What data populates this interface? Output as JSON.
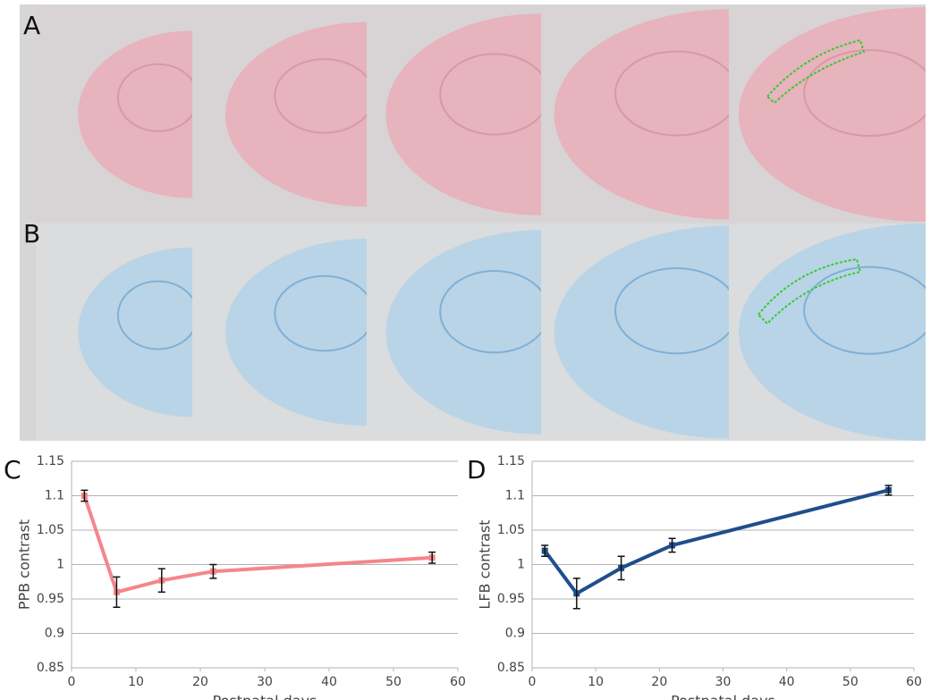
{
  "panel_labels": [
    "A",
    "B",
    "C",
    "D"
  ],
  "chart_data": [
    {
      "type": "line",
      "x_label": "Postnatal days",
      "y_label": "PPB contrast",
      "color": "#f4868a",
      "x": [
        2,
        7,
        14,
        22,
        56
      ],
      "values": [
        1.1,
        0.96,
        0.977,
        0.99,
        1.01
      ],
      "errors": [
        0.008,
        0.022,
        0.017,
        0.01,
        0.008
      ],
      "xlim": [
        0,
        60
      ],
      "xticks": [
        0,
        10,
        20,
        30,
        40,
        50,
        60
      ],
      "ylim": [
        0.85,
        1.15
      ],
      "yticks": [
        0.85,
        0.9,
        0.95,
        1,
        1.05,
        1.1,
        1.15
      ],
      "grid": true
    },
    {
      "type": "line",
      "x_label": "Postnatal days",
      "y_label": "LFB contrast",
      "color": "#1f4e8c",
      "x": [
        2,
        7,
        14,
        22,
        56
      ],
      "values": [
        1.02,
        0.958,
        0.995,
        1.028,
        1.108
      ],
      "errors": [
        0.008,
        0.022,
        0.017,
        0.01,
        0.007
      ],
      "xlim": [
        0,
        60
      ],
      "xticks": [
        0,
        10,
        20,
        30,
        40,
        50,
        60
      ],
      "ylim": [
        0.85,
        1.15
      ],
      "yticks": [
        0.85,
        0.9,
        0.95,
        1,
        1.05,
        1.1,
        1.15
      ],
      "grid": true
    }
  ]
}
